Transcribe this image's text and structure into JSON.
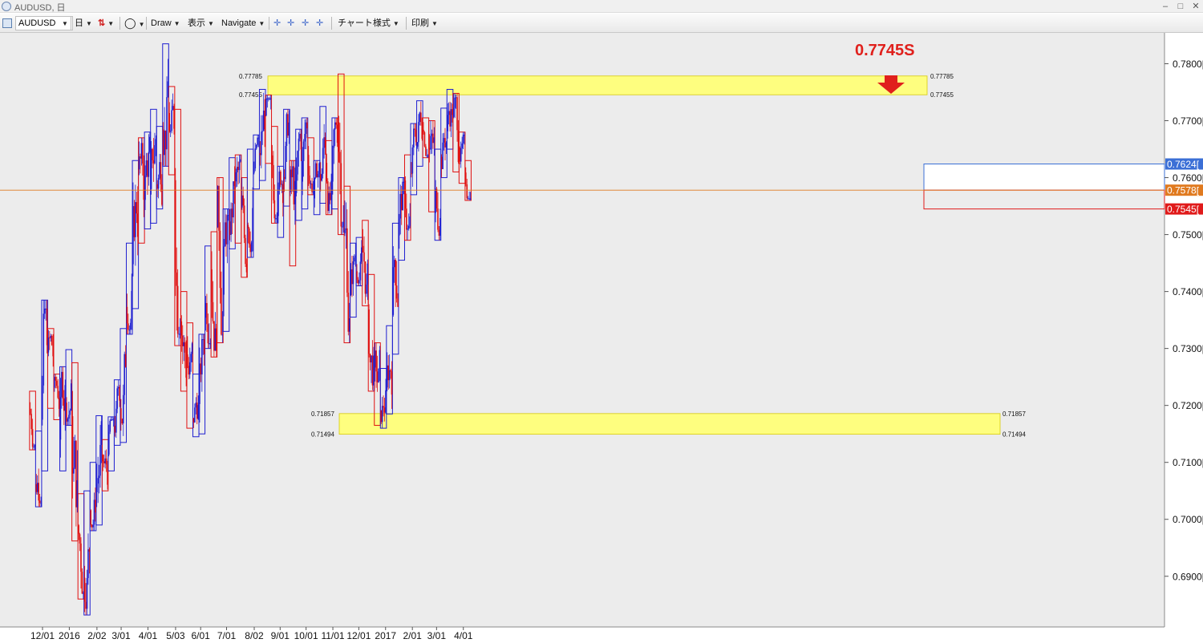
{
  "window": {
    "title": "AUDUSD, 日",
    "minimize": "–",
    "maximize": "□",
    "close": "✕"
  },
  "toolbar": {
    "symbol": "AUDUSD",
    "period": "日",
    "draw": "Draw",
    "view": "表示",
    "navigate": "Navigate",
    "chart_style": "チャート様式",
    "print": "印刷"
  },
  "colors": {
    "bull": "#1f1fd0",
    "bear": "#e01010",
    "zone": "#ffff7a",
    "current": "#e07a1f",
    "background": "#ececec"
  },
  "icons": [
    "app-icon",
    "chart-icon",
    "candle-icon",
    "circle-icon",
    "crosshair-icon"
  ],
  "callout": {
    "text": "0.7745S",
    "color": "#e0201c"
  },
  "zones": [
    {
      "top": "0.77785",
      "bottom": "0.77455",
      "label_top_left": "0.77785",
      "label_bottom_left": "0.77455",
      "label_top_right": "0.77785",
      "label_bottom_right": "0.77455"
    },
    {
      "top": "0.71857",
      "bottom": "0.71494",
      "label_top_left": "0.71857",
      "label_bottom_left": "0.71494",
      "label_top_right": "0.71857",
      "label_bottom_right": "0.71494"
    }
  ],
  "price_markers": [
    {
      "price": 0.7624,
      "text": "0.7624[",
      "bg": "#3b6fd6"
    },
    {
      "price": 0.7578,
      "text": "0.7578[",
      "bg": "#e07a1f"
    },
    {
      "price": 0.7545,
      "text": "0.7545[",
      "bg": "#e01a1a"
    }
  ],
  "chart_data": {
    "type": "candlestick",
    "symbol": "AUDUSD",
    "timeframe": "日",
    "ylim": [
      0.6825,
      0.7845
    ],
    "y_ticks": [
      "0.7800[",
      "0.7700[",
      "0.7600[",
      "0.7500[",
      "0.7400[",
      "0.7300[",
      "0.7200[",
      "0.7100[",
      "0.7000[",
      "0.6900["
    ],
    "y_tick_values": [
      0.78,
      0.77,
      0.76,
      0.75,
      0.74,
      0.73,
      0.72,
      0.71,
      0.7,
      0.69
    ],
    "x_ticks": [
      "12/01",
      "2016",
      "2/02",
      "3/01",
      "4/01",
      "5/03",
      "6/01",
      "7/01",
      "8/02",
      "9/01",
      "10/01",
      "11/01",
      "12/01",
      "2017",
      "2/01",
      "3/01",
      "4/01"
    ],
    "x_tick_dates": [
      "2015-12-01",
      "2016-01-01",
      "2016-02-02",
      "2016-03-01",
      "2016-04-01",
      "2016-05-03",
      "2016-06-01",
      "2016-07-01",
      "2016-08-02",
      "2016-09-01",
      "2016-10-01",
      "2016-11-01",
      "2016-12-01",
      "2017-01-01",
      "2017-02-01",
      "2017-03-01",
      "2017-04-01"
    ],
    "current_price": 0.7578,
    "weekly_boxes": [
      [
        "2015-11-16",
        0.7122,
        0.7225,
        "bear"
      ],
      [
        "2015-11-23",
        0.7022,
        0.7155,
        "bull"
      ],
      [
        "2015-11-30",
        0.7085,
        0.7385,
        "bull"
      ],
      [
        "2015-12-07",
        0.7195,
        0.7335,
        "bear"
      ],
      [
        "2015-12-14",
        0.7175,
        0.7255,
        "bear"
      ],
      [
        "2015-12-21",
        0.7085,
        0.7268,
        "bull"
      ],
      [
        "2015-12-28",
        0.7165,
        0.7298,
        "bull"
      ],
      [
        "2016-01-04",
        0.6962,
        0.7275,
        "bear"
      ],
      [
        "2016-01-11",
        0.686,
        0.7045,
        "bear"
      ],
      [
        "2016-01-18",
        0.6832,
        0.705,
        "bull"
      ],
      [
        "2016-01-25",
        0.698,
        0.71,
        "bull"
      ],
      [
        "2016-02-01",
        0.699,
        0.7182,
        "bull"
      ],
      [
        "2016-02-08",
        0.705,
        0.714,
        "bear"
      ],
      [
        "2016-02-15",
        0.7085,
        0.718,
        "bull"
      ],
      [
        "2016-02-22",
        0.713,
        0.7245,
        "bull"
      ],
      [
        "2016-02-29",
        0.7135,
        0.7335,
        "bull"
      ],
      [
        "2016-03-07",
        0.7325,
        0.7485,
        "bull"
      ],
      [
        "2016-03-14",
        0.737,
        0.763,
        "bull"
      ],
      [
        "2016-03-21",
        0.7485,
        0.767,
        "bear"
      ],
      [
        "2016-03-28",
        0.751,
        0.768,
        "bull"
      ],
      [
        "2016-04-04",
        0.752,
        0.772,
        "bull"
      ],
      [
        "2016-04-11",
        0.7545,
        0.769,
        "bull"
      ],
      [
        "2016-04-18",
        0.762,
        0.7835,
        "bull"
      ],
      [
        "2016-04-25",
        0.7605,
        0.776,
        "bear"
      ],
      [
        "2016-05-02",
        0.7305,
        0.772,
        "bear"
      ],
      [
        "2016-05-09",
        0.7225,
        0.74,
        "bear"
      ],
      [
        "2016-05-16",
        0.716,
        0.7345,
        "bear"
      ],
      [
        "2016-05-23",
        0.7145,
        0.7255,
        "bull"
      ],
      [
        "2016-05-30",
        0.715,
        0.7325,
        "bull"
      ],
      [
        "2016-06-06",
        0.73,
        0.748,
        "bull"
      ],
      [
        "2016-06-13",
        0.7285,
        0.7505,
        "bear"
      ],
      [
        "2016-06-20",
        0.731,
        0.76,
        "bear"
      ],
      [
        "2016-06-27",
        0.733,
        0.7545,
        "bull"
      ],
      [
        "2016-07-04",
        0.7475,
        0.7635,
        "bull"
      ],
      [
        "2016-07-11",
        0.7485,
        0.764,
        "bear"
      ],
      [
        "2016-07-18",
        0.7425,
        0.76,
        "bear"
      ],
      [
        "2016-07-25",
        0.746,
        0.765,
        "bull"
      ],
      [
        "2016-08-01",
        0.758,
        0.7675,
        "bull"
      ],
      [
        "2016-08-08",
        0.7595,
        0.7755,
        "bull"
      ],
      [
        "2016-08-15",
        0.7625,
        0.7745,
        "bear"
      ],
      [
        "2016-08-22",
        0.752,
        0.769,
        "bear"
      ],
      [
        "2016-08-29",
        0.7495,
        0.762,
        "bull"
      ],
      [
        "2016-09-05",
        0.755,
        0.772,
        "bull"
      ],
      [
        "2016-09-12",
        0.7445,
        0.763,
        "bear"
      ],
      [
        "2016-09-19",
        0.7525,
        0.7685,
        "bull"
      ],
      [
        "2016-09-26",
        0.7545,
        0.7705,
        "bull"
      ],
      [
        "2016-10-03",
        0.757,
        0.767,
        "bear"
      ],
      [
        "2016-10-10",
        0.7535,
        0.763,
        "bull"
      ],
      [
        "2016-10-17",
        0.7555,
        0.7725,
        "bull"
      ],
      [
        "2016-10-24",
        0.7535,
        0.7665,
        "bear"
      ],
      [
        "2016-10-31",
        0.7545,
        0.7705,
        "bull"
      ],
      [
        "2016-11-07",
        0.75,
        0.7782,
        "bear"
      ],
      [
        "2016-11-14",
        0.731,
        0.7585,
        "bear"
      ],
      [
        "2016-11-21",
        0.7355,
        0.7485,
        "bull"
      ],
      [
        "2016-11-28",
        0.741,
        0.7495,
        "bull"
      ],
      [
        "2016-12-05",
        0.7375,
        0.7525,
        "bear"
      ],
      [
        "2016-12-12",
        0.7225,
        0.743,
        "bear"
      ],
      [
        "2016-12-19",
        0.7165,
        0.731,
        "bear"
      ],
      [
        "2016-12-26",
        0.716,
        0.7265,
        "bull"
      ],
      [
        "2017-01-02",
        0.7185,
        0.734,
        "bull"
      ],
      [
        "2017-01-09",
        0.729,
        0.752,
        "bull"
      ],
      [
        "2017-01-16",
        0.7455,
        0.76,
        "bull"
      ],
      [
        "2017-01-23",
        0.749,
        0.764,
        "bear"
      ],
      [
        "2017-01-30",
        0.757,
        0.7695,
        "bull"
      ],
      [
        "2017-02-06",
        0.762,
        0.7735,
        "bull"
      ],
      [
        "2017-02-13",
        0.7635,
        0.7705,
        "bear"
      ],
      [
        "2017-02-20",
        0.754,
        0.77,
        "bear"
      ],
      [
        "2017-02-27",
        0.749,
        0.765,
        "bull"
      ],
      [
        "2017-03-06",
        0.76,
        0.7722,
        "bull"
      ],
      [
        "2017-03-13",
        0.765,
        0.7755,
        "bull"
      ],
      [
        "2017-03-20",
        0.761,
        0.7748,
        "bear"
      ],
      [
        "2017-03-27",
        0.759,
        0.768,
        "bear"
      ],
      [
        "2017-04-03",
        0.756,
        0.763,
        "bear"
      ]
    ]
  }
}
